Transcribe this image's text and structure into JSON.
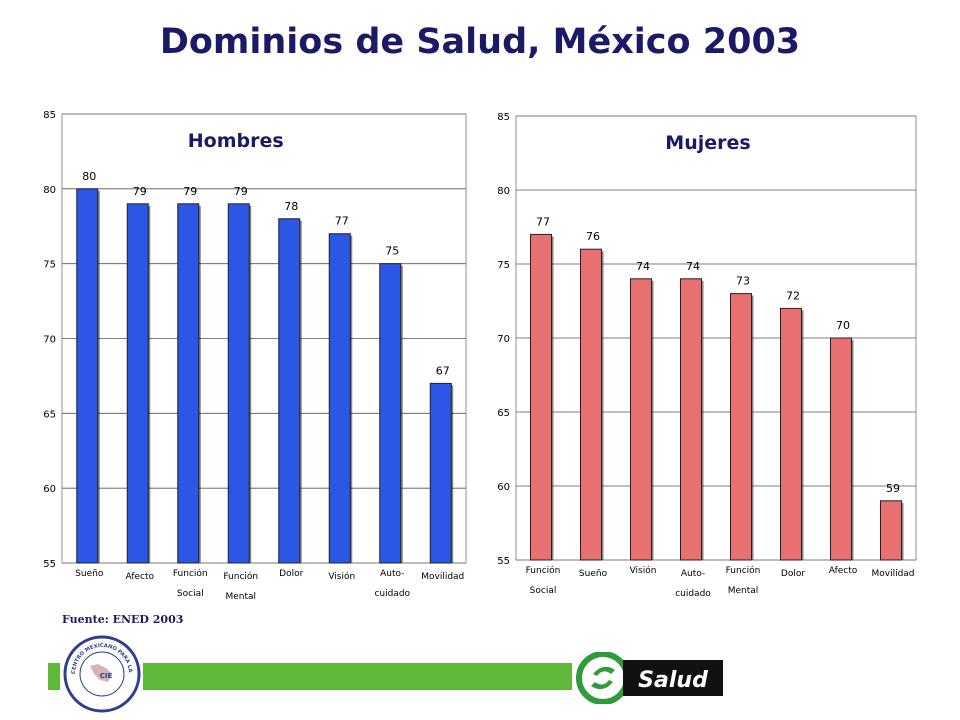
{
  "header": {
    "title": "Dominios de Salud, México 2003"
  },
  "footer": {
    "source": "Fuente: ENED 2003",
    "seal_text": "CENTRO MEXICANO PARA LA CLASIFICACIÓN DE ENFERMEDADES",
    "seal_inner": "CIE",
    "brand": "Salud"
  },
  "colors": {
    "hombres_bar": "#2b56e6",
    "mujeres_bar": "#e87070",
    "title": "#1a1a66",
    "accent_green": "#5fb83a"
  },
  "chart_data": [
    {
      "type": "bar",
      "title": "Hombres",
      "categories": [
        [
          "Sueño"
        ],
        [
          "Afecto"
        ],
        [
          "Función",
          "Social"
        ],
        [
          "Función",
          "Mental"
        ],
        [
          "Dolor"
        ],
        [
          "Visión"
        ],
        [
          "Auto-",
          "cuidado"
        ],
        [
          "Movilidad"
        ]
      ],
      "values": [
        80,
        79,
        79,
        79,
        78,
        77,
        75,
        67
      ],
      "ylim": [
        55,
        85
      ],
      "yticks": [
        55,
        60,
        65,
        70,
        75,
        80,
        85
      ],
      "grid": true,
      "xlabel": "",
      "ylabel": ""
    },
    {
      "type": "bar",
      "title": "Mujeres",
      "categories": [
        [
          "Función",
          "Social"
        ],
        [
          "Sueño"
        ],
        [
          "Visión"
        ],
        [
          "Auto-",
          "cuidado"
        ],
        [
          "Función",
          "Mental"
        ],
        [
          "Dolor"
        ],
        [
          "Afecto"
        ],
        [
          "Movilidad"
        ]
      ],
      "values": [
        77,
        76,
        74,
        74,
        73,
        72,
        70,
        59
      ],
      "ylim": [
        55,
        85
      ],
      "yticks": [
        55,
        60,
        65,
        70,
        75,
        80,
        85
      ],
      "grid": true,
      "xlabel": "",
      "ylabel": ""
    }
  ]
}
